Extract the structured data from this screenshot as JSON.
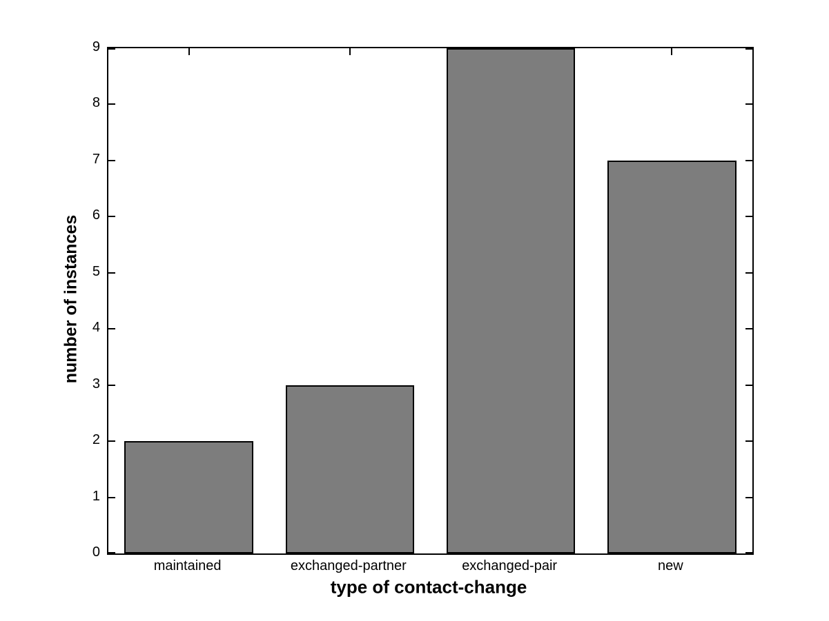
{
  "chart_data": {
    "type": "bar",
    "title": "",
    "categories": [
      "maintained",
      "exchanged-partner",
      "exchanged-pair",
      "new"
    ],
    "values": [
      2,
      3,
      9,
      7
    ],
    "xlabel": "type of contact-change",
    "ylabel": "number of instances",
    "yticks": [
      0,
      1,
      2,
      3,
      4,
      5,
      6,
      7,
      8,
      9
    ],
    "ylim": [
      0,
      9
    ],
    "bar_relative_width": 0.8,
    "bar_fill_color": "#7d7d7d",
    "bar_edge_color": "#000000",
    "axis_color": "#000000",
    "background_color": "#ffffff",
    "grid": "off",
    "legend": "none",
    "tick_direction": "in",
    "box": "on"
  }
}
